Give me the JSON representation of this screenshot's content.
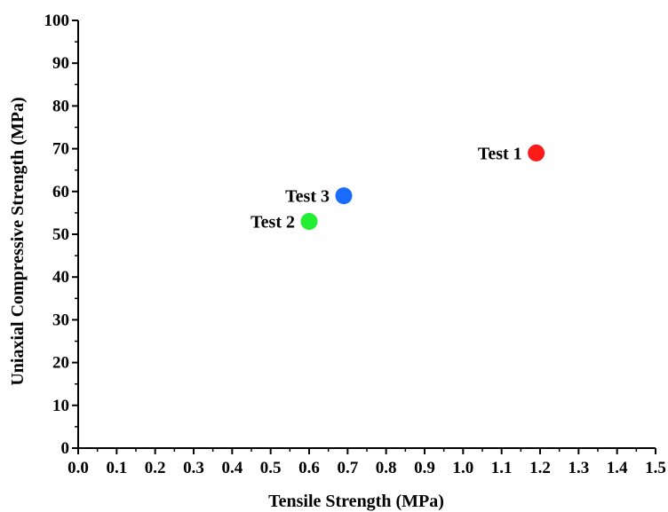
{
  "chart_data": {
    "type": "scatter",
    "title": "",
    "xlabel": "Tensile Strength (MPa)",
    "ylabel": "Uniaxial Compressive Strength (MPa)",
    "xlim": [
      0.0,
      1.5
    ],
    "ylim": [
      0,
      100
    ],
    "x_ticks": [
      "0.0",
      "0.1",
      "0.2",
      "0.3",
      "0.4",
      "0.5",
      "0.6",
      "0.7",
      "0.8",
      "0.9",
      "1.0",
      "1.1",
      "1.2",
      "1.3",
      "1.4",
      "1.5"
    ],
    "y_ticks": [
      "0",
      "10",
      "20",
      "30",
      "40",
      "50",
      "60",
      "70",
      "80",
      "90",
      "100"
    ],
    "grid": false,
    "legend": "none",
    "points": [
      {
        "label": "Test 1",
        "x": 1.19,
        "y": 69,
        "color": "#ff1a1a"
      },
      {
        "label": "Test 2",
        "x": 0.6,
        "y": 53,
        "color": "#22ee33"
      },
      {
        "label": "Test 3",
        "x": 0.69,
        "y": 59,
        "color": "#1a6cff"
      }
    ]
  }
}
